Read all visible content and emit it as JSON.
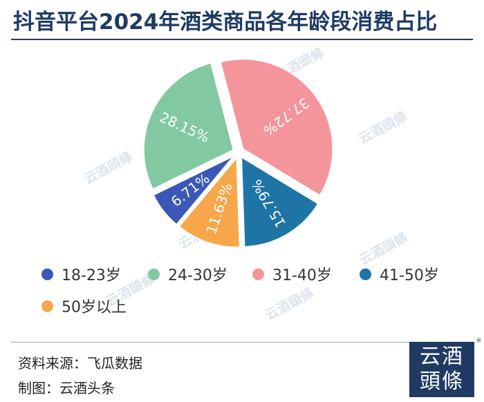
{
  "chart_data": {
    "type": "pie",
    "title": "抖音平台2024年酒类商品各年龄段消费占比",
    "categories": [
      "18-23岁",
      "24-30岁",
      "31-40岁",
      "41-50岁",
      "50岁以上"
    ],
    "values": [
      6.71,
      28.15,
      37.72,
      15.79,
      11.63
    ],
    "value_labels": [
      "6.71%",
      "28.15%",
      "37.72%",
      "15.79%",
      "11.63%"
    ],
    "colors": [
      "#3a58b6",
      "#82c9a1",
      "#f4959b",
      "#1f74a6",
      "#f7a74a"
    ],
    "legend_placement": "bottom"
  },
  "footer": {
    "source": "资料来源：飞瓜数据",
    "maker": "制图：云酒头条"
  },
  "watermark": "云酒頭條",
  "logo": {
    "line1": "云酒",
    "line2": "頭條",
    "mark": "®"
  }
}
